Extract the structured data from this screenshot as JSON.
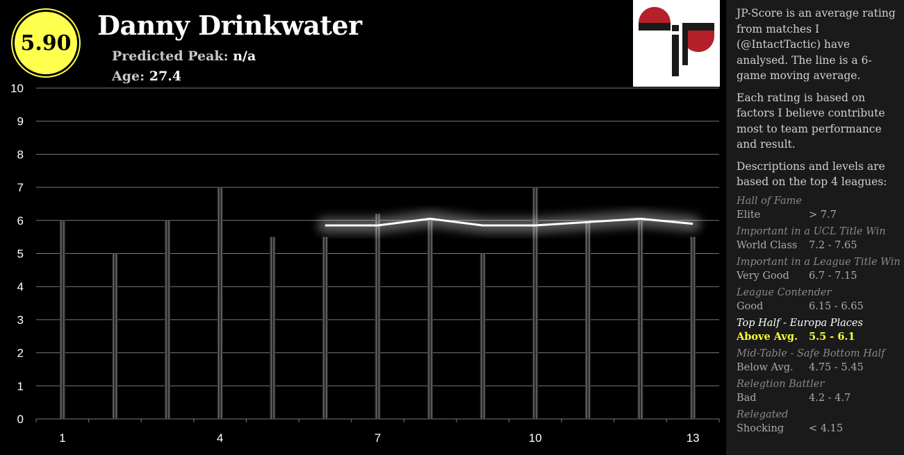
{
  "header": {
    "score": "5.90",
    "name": "Danny Drinkwater",
    "peak_label": "Predicted Peak:",
    "peak_value": "n/a",
    "age_label": "Age:",
    "age_value": "27.4"
  },
  "colors": {
    "badge": "#ffff4d",
    "logo_red": "#b5202a",
    "highlight": "#ffff33"
  },
  "sidebar": {
    "paragraphs": [
      "JP-Score is an average rating from matches I (@IntactTactic) have analysed. The line is a 6-game moving average.",
      "Each rating is based on factors I believe contribute most to team performance and result.",
      "Descriptions and levels are based on the top 4 leagues:"
    ],
    "levels": [
      {
        "title": "Hall of Fame",
        "name": "Elite",
        "range": "> 7.7"
      },
      {
        "title": "Important in a UCL Title Win",
        "name": "World Class",
        "range": "7.2 - 7.65"
      },
      {
        "title": "Important in a League Title Win",
        "name": "Very Good",
        "range": "6.7 - 7.15"
      },
      {
        "title": "League Contender",
        "name": "Good",
        "range": "6.15 - 6.65"
      },
      {
        "title": "Top Half - Europa Places",
        "name": "Above Avg.",
        "range": "5.5 - 6.1",
        "highlight": true
      },
      {
        "title": "Mid-Table - Safe Bottom Half",
        "name": "Below Avg.",
        "range": "4.75 - 5.45"
      },
      {
        "title": "Relegtion Battler",
        "name": "Bad",
        "range": "4.2 - 4.7"
      },
      {
        "title": "Relegated",
        "name": "Shocking",
        "range": "< 4.15"
      }
    ]
  },
  "chart_data": {
    "type": "bar",
    "x": [
      1,
      2,
      3,
      4,
      5,
      6,
      7,
      8,
      9,
      10,
      11,
      12,
      13
    ],
    "x_tick_labels": [
      "1",
      "4",
      "7",
      "10",
      "13"
    ],
    "x_tick_values": [
      1,
      4,
      7,
      10,
      13
    ],
    "ylim": [
      0,
      10
    ],
    "y_ticks": [
      0,
      1,
      2,
      3,
      4,
      5,
      6,
      7,
      8,
      9,
      10
    ],
    "grid": true,
    "series": [
      {
        "values": [
          6,
          5,
          6,
          7,
          5.5,
          5.5,
          6.2,
          6,
          5,
          7,
          6,
          6,
          5.5
        ]
      },
      {
        "values": [
          null,
          null,
          null,
          null,
          null,
          5.85,
          5.85,
          6.05,
          5.85,
          5.85,
          5.95,
          6.05,
          5.9
        ]
      }
    ]
  }
}
